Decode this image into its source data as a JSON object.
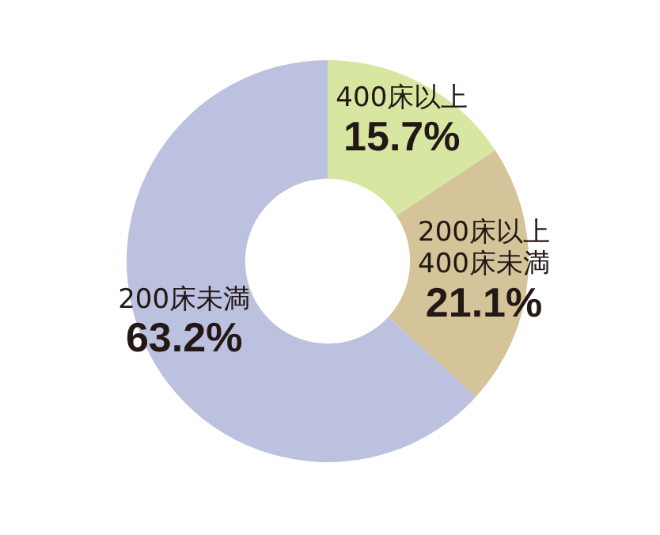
{
  "chart_data": {
    "type": "donut",
    "categories": [
      "400床以上",
      "200床以上\n400床未満",
      "200床未満"
    ],
    "values": [
      15.7,
      21.1,
      63.2
    ],
    "value_labels": [
      "15.7%",
      "21.1%",
      "63.2%"
    ],
    "colors": [
      "#d7e6a1",
      "#d5c499",
      "#bcc1e0"
    ],
    "legend": false
  }
}
